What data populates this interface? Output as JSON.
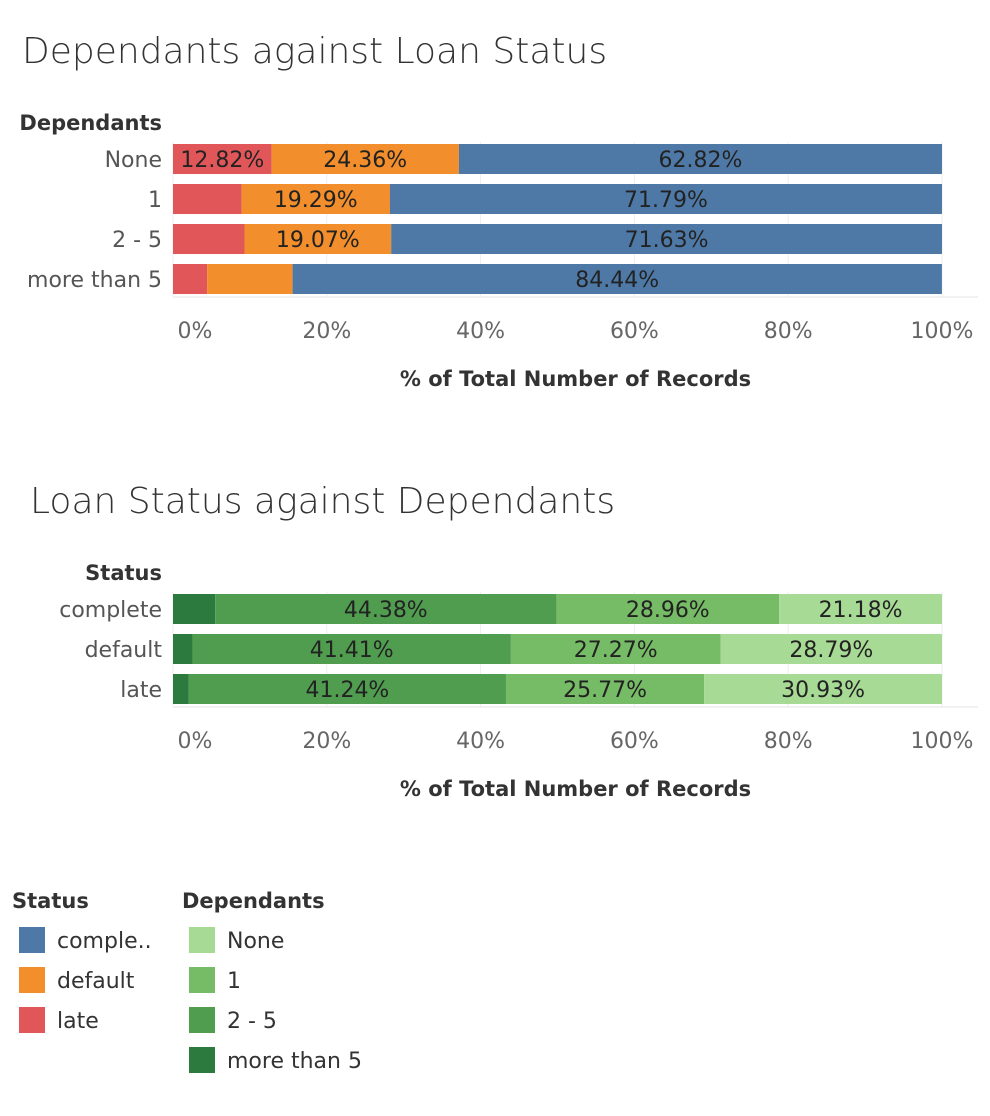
{
  "chart_data": [
    {
      "type": "bar",
      "orientation": "horizontal",
      "stacked": true,
      "title": "Dependants against Loan Status",
      "row_header": "Dependants",
      "xlabel": "% of Total Number of Records",
      "xlim": [
        0,
        100
      ],
      "ticks": [
        "0%",
        "20%",
        "40%",
        "60%",
        "80%",
        "100%"
      ],
      "tick_values": [
        0,
        20,
        40,
        60,
        80,
        100
      ],
      "grid": true,
      "categories": [
        "None",
        "1",
        "2 - 5",
        "more than 5"
      ],
      "series": [
        {
          "name": "late",
          "color": "#e15759",
          "values": [
            12.82,
            8.92,
            9.3,
            4.44
          ],
          "labels": [
            "12.82%",
            "",
            "",
            ""
          ]
        },
        {
          "name": "default",
          "color": "#f28e2b",
          "values": [
            24.36,
            19.29,
            19.07,
            11.11
          ],
          "labels": [
            "24.36%",
            "19.29%",
            "19.07%",
            ""
          ]
        },
        {
          "name": "complete",
          "color": "#4e79a7",
          "values": [
            62.82,
            71.79,
            71.63,
            84.44
          ],
          "labels": [
            "62.82%",
            "71.79%",
            "71.63%",
            "84.44%"
          ]
        }
      ]
    },
    {
      "type": "bar",
      "orientation": "horizontal",
      "stacked": true,
      "title": "Loan Status against Dependants",
      "row_header": "Status",
      "xlabel": "% of Total Number of Records",
      "xlim": [
        0,
        100
      ],
      "ticks": [
        "0%",
        "20%",
        "40%",
        "60%",
        "80%",
        "100%"
      ],
      "tick_values": [
        0,
        20,
        40,
        60,
        80,
        100
      ],
      "grid": true,
      "categories": [
        "complete",
        "default",
        "late"
      ],
      "series": [
        {
          "name": "more than 5",
          "color": "#2d7a3e",
          "values": [
            5.48,
            2.53,
            2.06
          ],
          "labels": [
            "",
            "",
            ""
          ]
        },
        {
          "name": "2 - 5",
          "color": "#519d50",
          "values": [
            44.38,
            41.41,
            41.24
          ],
          "labels": [
            "44.38%",
            "41.41%",
            "41.24%"
          ]
        },
        {
          "name": "1",
          "color": "#76bb65",
          "values": [
            28.96,
            27.27,
            25.77
          ],
          "labels": [
            "28.96%",
            "27.27%",
            "25.77%"
          ]
        },
        {
          "name": "None",
          "color": "#a7da95",
          "values": [
            21.18,
            28.79,
            30.93
          ],
          "labels": [
            "21.18%",
            "28.79%",
            "30.93%"
          ]
        }
      ]
    }
  ],
  "legends": [
    {
      "title": "Status",
      "items": [
        {
          "label": "comple..",
          "color": "#4e79a7"
        },
        {
          "label": "default",
          "color": "#f28e2b"
        },
        {
          "label": "late",
          "color": "#e15759"
        }
      ]
    },
    {
      "title": "Dependants",
      "items": [
        {
          "label": "None",
          "color": "#a7da95"
        },
        {
          "label": "1",
          "color": "#76bb65"
        },
        {
          "label": "2 - 5",
          "color": "#519d50"
        },
        {
          "label": "more than 5",
          "color": "#2d7a3e"
        }
      ]
    }
  ]
}
